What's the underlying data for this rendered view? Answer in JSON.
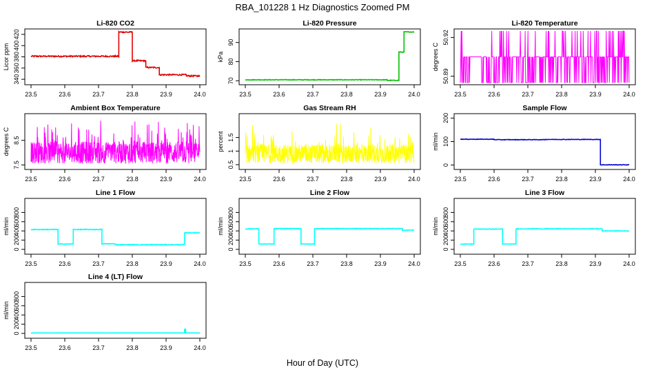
{
  "title": "RBA_101228  1 Hz Diagnostics Zoomed PM",
  "xlabel": "Hour of Day (UTC)",
  "colors": {
    "red": "#e00000",
    "green": "#00c000",
    "magenta": "#ff00ff",
    "yellow": "#ffff00",
    "blue": "#0000cc",
    "cyan": "#00ffff"
  },
  "chart_data": [
    {
      "type": "line",
      "title": "Li-820 CO2",
      "ylabel": "Licor ppm",
      "color": "red",
      "xlim": [
        23.5,
        24.0
      ],
      "ylim": [
        334,
        426
      ],
      "xticks": [
        "23.5",
        "23.6",
        "23.7",
        "23.8",
        "23.9",
        "24.0"
      ],
      "yticks": [
        340,
        360,
        380,
        400,
        420
      ],
      "segments": [
        [
          23.5,
          23.76,
          381
        ],
        [
          23.76,
          23.8,
          424
        ],
        [
          23.8,
          23.84,
          373
        ],
        [
          23.84,
          23.88,
          361
        ],
        [
          23.88,
          23.96,
          348
        ],
        [
          23.96,
          24.0,
          346
        ]
      ],
      "noise": 1.2
    },
    {
      "type": "line",
      "title": "Li-820 Pressure",
      "ylabel": "kPa",
      "color": "green",
      "xlim": [
        23.5,
        24.0
      ],
      "ylim": [
        69,
        96
      ],
      "xticks": [
        "23.5",
        "23.6",
        "23.7",
        "23.8",
        "23.9",
        "24.0"
      ],
      "yticks": [
        70,
        80,
        90
      ],
      "segments": [
        [
          23.5,
          23.92,
          70.5
        ],
        [
          23.92,
          23.955,
          70.2
        ],
        [
          23.955,
          23.97,
          85
        ],
        [
          23.97,
          24.0,
          95.5
        ]
      ],
      "noise": 0.15
    },
    {
      "type": "line",
      "title": "Li-820 Temperature",
      "ylabel": "degrees C",
      "color": "magenta",
      "xlim": [
        23.5,
        24.0
      ],
      "ylim": [
        50.885,
        50.925
      ],
      "xticks": [
        "23.5",
        "23.6",
        "23.7",
        "23.8",
        "23.9",
        "24.0"
      ],
      "yticks": [
        50.89,
        50.92
      ],
      "low": 50.885,
      "high": 50.925,
      "base": 50.905,
      "style": "spikes"
    },
    {
      "type": "line",
      "title": "Ambient Box Temperature",
      "ylabel": "degrees C",
      "color": "magenta",
      "xlim": [
        23.5,
        24.0
      ],
      "ylim": [
        7.4,
        9.5
      ],
      "xticks": [
        "23.5",
        "23.6",
        "23.7",
        "23.8",
        "23.9",
        "24.0"
      ],
      "yticks": [
        7.5,
        8.5
      ],
      "segments": [
        [
          23.5,
          24.0,
          8.0
        ]
      ],
      "noise": 0.45,
      "style": "noise"
    },
    {
      "type": "line",
      "title": "Gas Stream RH",
      "ylabel": "percent",
      "color": "yellow",
      "xlim": [
        23.5,
        24.0
      ],
      "ylim": [
        0.4,
        2.3
      ],
      "xticks": [
        "23.5",
        "23.6",
        "23.7",
        "23.8",
        "23.9",
        "24.0"
      ],
      "yticks": [
        0.5,
        1.0,
        1.5
      ],
      "segments": [
        [
          23.5,
          24.0,
          0.9
        ]
      ],
      "noise": 0.35,
      "style": "noise"
    },
    {
      "type": "line",
      "title": "Sample Flow",
      "ylabel": "ml/min",
      "color": "blue",
      "xlim": [
        23.5,
        24.0
      ],
      "ylim": [
        -10,
        210
      ],
      "xticks": [
        "23.5",
        "23.6",
        "23.7",
        "23.8",
        "23.9",
        "24.0"
      ],
      "yticks": [
        0,
        100,
        200
      ],
      "segments": [
        [
          23.5,
          23.6,
          110
        ],
        [
          23.6,
          23.75,
          108
        ],
        [
          23.75,
          23.915,
          109
        ],
        [
          23.915,
          24.0,
          1
        ]
      ],
      "noise": 1.0
    },
    {
      "type": "line",
      "title": "Line 1 Flow",
      "ylabel": "ml/min",
      "color": "cyan",
      "xlim": [
        23.5,
        24.0
      ],
      "ylim": [
        -60,
        1060
      ],
      "xticks": [
        "23.5",
        "23.6",
        "23.7",
        "23.8",
        "23.9",
        "24.0"
      ],
      "yticks": [
        0,
        200,
        400,
        600,
        800
      ],
      "segments": [
        [
          23.5,
          23.58,
          430
        ],
        [
          23.58,
          23.625,
          115
        ],
        [
          23.625,
          23.71,
          430
        ],
        [
          23.71,
          23.75,
          120
        ],
        [
          23.75,
          23.955,
          100
        ],
        [
          23.955,
          24.0,
          360
        ]
      ],
      "noise": 8
    },
    {
      "type": "line",
      "title": "Line 2 Flow",
      "ylabel": "ml/min",
      "color": "cyan",
      "xlim": [
        23.5,
        24.0
      ],
      "ylim": [
        -60,
        1060
      ],
      "xticks": [
        "23.5",
        "23.6",
        "23.7",
        "23.8",
        "23.9",
        "24.0"
      ],
      "yticks": [
        0,
        200,
        400,
        600,
        800
      ],
      "segments": [
        [
          23.5,
          23.54,
          445
        ],
        [
          23.54,
          23.585,
          115
        ],
        [
          23.585,
          23.665,
          450
        ],
        [
          23.665,
          23.705,
          115
        ],
        [
          23.705,
          23.965,
          450
        ],
        [
          23.965,
          24.0,
          415
        ]
      ],
      "noise": 6
    },
    {
      "type": "line",
      "title": "Line 3 Flow",
      "ylabel": "ml/min",
      "color": "cyan",
      "xlim": [
        23.5,
        24.0
      ],
      "ylim": [
        -60,
        1060
      ],
      "xticks": [
        "23.5",
        "23.6",
        "23.7",
        "23.8",
        "23.9",
        "24.0"
      ],
      "yticks": [
        0,
        200,
        400,
        600,
        800
      ],
      "segments": [
        [
          23.5,
          23.54,
          115
        ],
        [
          23.54,
          23.625,
          440
        ],
        [
          23.625,
          23.665,
          115
        ],
        [
          23.665,
          23.92,
          445
        ],
        [
          23.92,
          24.0,
          400
        ]
      ],
      "noise": 6
    },
    {
      "type": "line",
      "title": "Line 4 (LT) Flow",
      "ylabel": "ml/min",
      "color": "cyan",
      "xlim": [
        23.5,
        24.0
      ],
      "ylim": [
        -60,
        1060
      ],
      "xticks": [
        "23.5",
        "23.6",
        "23.7",
        "23.8",
        "23.9",
        "24.0"
      ],
      "yticks": [
        0,
        200,
        400,
        600,
        800
      ],
      "segments": [
        [
          23.5,
          23.955,
          10
        ],
        [
          23.955,
          23.958,
          90
        ],
        [
          23.958,
          24.0,
          10
        ]
      ],
      "noise": 2
    }
  ]
}
